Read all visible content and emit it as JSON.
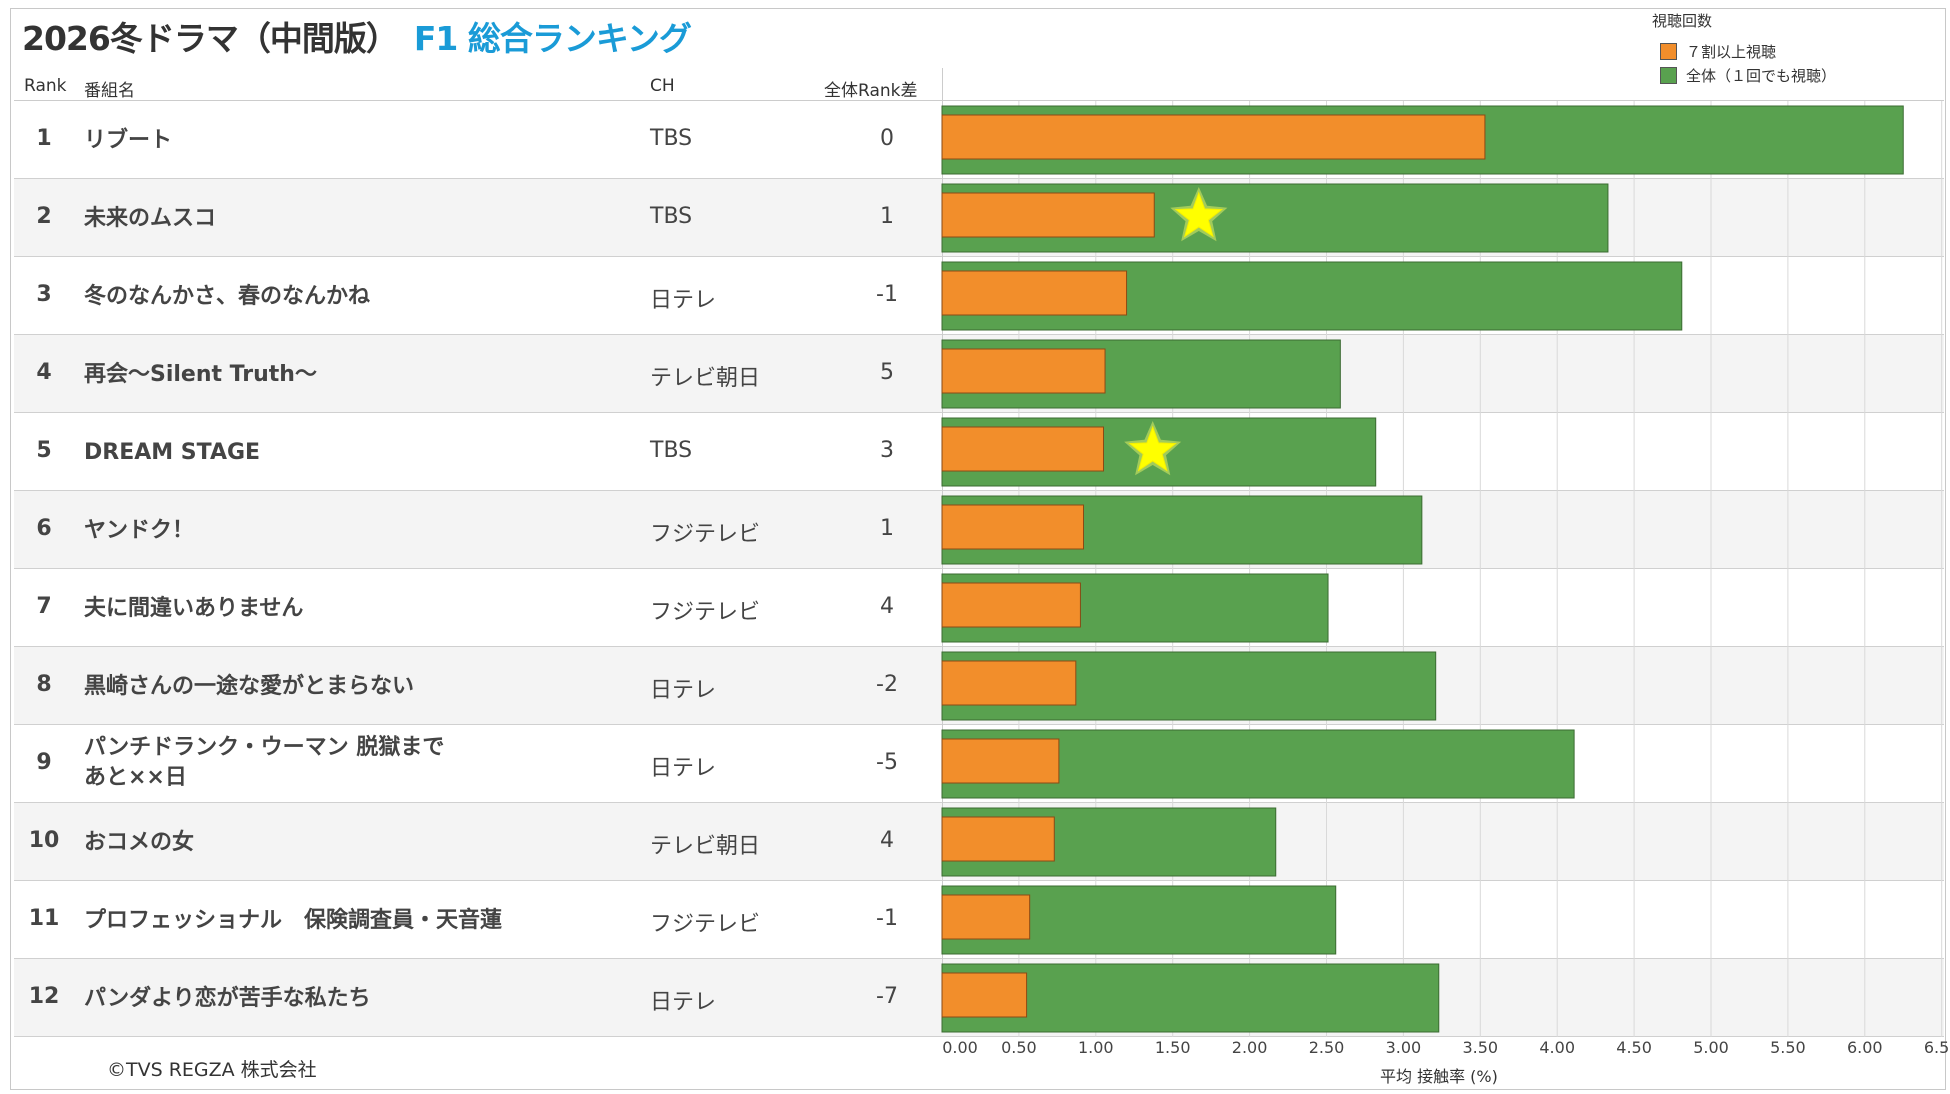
{
  "title": {
    "main": "2026冬ドラマ（中間版）",
    "sub": "F1 総合ランキング"
  },
  "headers": {
    "rank": "Rank",
    "name": "番組名",
    "ch": "CH",
    "diff": "全体Rank差"
  },
  "legend": {
    "title": "視聴回数",
    "items": [
      {
        "label": "７割以上視聴",
        "color": "#f28e2b"
      },
      {
        "label": "全体（１回でも視聴）",
        "color": "#59a14f"
      }
    ]
  },
  "rows": [
    {
      "rank": "1",
      "name": "リブート",
      "ch": "TBS",
      "diff": "0"
    },
    {
      "rank": "2",
      "name": "未来のムスコ",
      "ch": "TBS",
      "diff": "1"
    },
    {
      "rank": "3",
      "name": "冬のなんかさ、春のなんかね",
      "ch": "日テレ",
      "diff": "-1"
    },
    {
      "rank": "4",
      "name": "再会～Silent Truth～",
      "ch": "テレビ朝日",
      "diff": "5"
    },
    {
      "rank": "5",
      "name": "DREAM STAGE",
      "ch": "TBS",
      "diff": "3"
    },
    {
      "rank": "6",
      "name": "ヤンドク！",
      "ch": "フジテレビ",
      "diff": "1"
    },
    {
      "rank": "7",
      "name": "夫に間違いありません",
      "ch": "フジテレビ",
      "diff": "4"
    },
    {
      "rank": "8",
      "name": "黒崎さんの一途な愛がとまらない",
      "ch": "日テレ",
      "diff": "-2"
    },
    {
      "rank": "9",
      "name": "パンチドランク・ウーマン 脱獄まであと××日",
      "ch": "日テレ",
      "diff": "-5"
    },
    {
      "rank": "10",
      "name": "おコメの女",
      "ch": "テレビ朝日",
      "diff": "4"
    },
    {
      "rank": "11",
      "name": "プロフェッショナル　保険調査員・天音蓮",
      "ch": "フジテレビ",
      "diff": "-1"
    },
    {
      "rank": "12",
      "name": "パンダより恋が苦手な私たち",
      "ch": "日テレ",
      "diff": "-7"
    }
  ],
  "chart_data": {
    "type": "bar",
    "orientation": "horizontal",
    "categories": [
      "リブート",
      "未来のムスコ",
      "冬のなんかさ、春のなんかね",
      "再会～Silent Truth～",
      "DREAM STAGE",
      "ヤンドク！",
      "夫に間違いありません",
      "黒崎さんの一途な愛がとまらない",
      "パンチドランク・ウーマン 脱獄まであと××日",
      "おコメの女",
      "プロフェッショナル　保険調査員・天音蓮",
      "パンダより恋が苦手な私たち"
    ],
    "series": [
      {
        "name": "全体（１回でも視聴）",
        "color": "#59a14f",
        "values": [
          6.25,
          4.33,
          4.81,
          2.59,
          2.82,
          3.12,
          2.51,
          3.21,
          4.11,
          2.17,
          2.56,
          3.23
        ]
      },
      {
        "name": "７割以上視聴",
        "color": "#f28e2b",
        "values": [
          3.53,
          1.38,
          1.2,
          1.06,
          1.05,
          0.92,
          0.9,
          0.87,
          0.76,
          0.73,
          0.57,
          0.55
        ]
      }
    ],
    "stars": [
      {
        "category": "未来のムスコ",
        "value": 1.67
      },
      {
        "category": "DREAM STAGE",
        "value": 1.37
      }
    ],
    "star_color": "#ffff00",
    "ticks": [
      "0.00",
      "0.50",
      "1.00",
      "1.50",
      "2.00",
      "2.50",
      "3.00",
      "3.50",
      "4.00",
      "4.50",
      "5.00",
      "5.50",
      "6.00",
      "6.50"
    ],
    "xlim": [
      0,
      6.5
    ],
    "xlabel": "平均 接触率 (%)",
    "grid": true
  },
  "footer": {
    "copyright": "©TVS REGZA 株式会社"
  }
}
